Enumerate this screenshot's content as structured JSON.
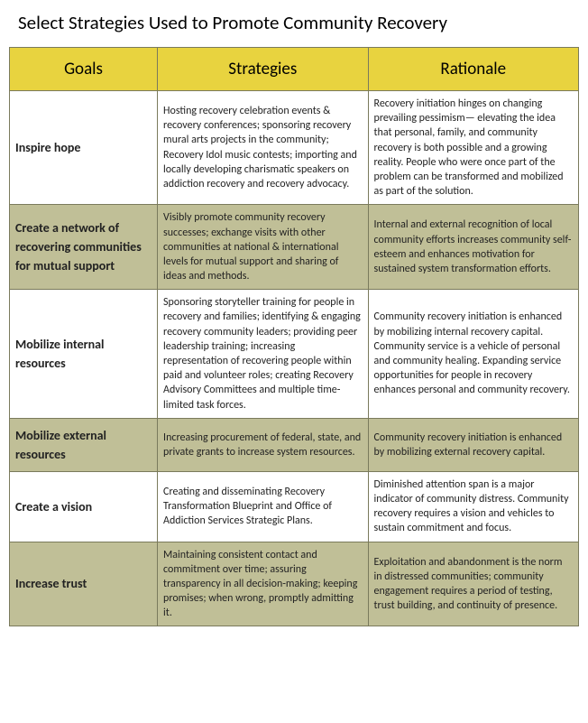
{
  "title": "Select Strategies Used to Promote Community Recovery",
  "headers": {
    "c1": "Goals",
    "c2": "Strategies",
    "c3": "Rationale"
  },
  "rows": [
    {
      "goal": "Inspire hope",
      "strategy": "Hosting recovery celebration events & recovery conferences; sponsoring recovery mural arts projects in the community; Recovery Idol music contests; importing and locally developing charismatic speakers on addiction recovery and recovery advocacy.",
      "rationale": "Recovery initiation hinges on changing prevailing pessimism— elevating the idea that personal, family, and community recovery is both possible and a growing reality. People who were once   part of the problem can be transformed and mobilized as part of the solution."
    },
    {
      "goal": "Create a network of recovering communities for mutual support",
      "strategy": "Visibly promote community recovery successes; exchange visits with other communities at national & international levels for mutual support and sharing of ideas and methods.",
      "rationale": "Internal and external recognition of local community efforts increases community self-esteem and enhances motivation for sustained system transformation efforts."
    },
    {
      "goal": "Mobilize internal resources",
      "strategy": "Sponsoring storyteller training for people in recovery and families; identifying & engaging recovery community leaders; providing peer leadership training; increasing representation of recovering people within paid and volunteer roles; creating Recovery Advisory Committees and multiple time-limited task forces.",
      "rationale": "Community recovery initiation is enhanced by mobilizing internal recovery capital. Community service is a vehicle of personal and community healing. Expanding service opportunities for people in recovery enhances personal and community recovery."
    },
    {
      "goal": "Mobilize external resources",
      "strategy": "Increasing procurement of federal, state, and private grants to increase system resources.",
      "rationale": "Community recovery initiation is enhanced by mobilizing external recovery capital."
    },
    {
      "goal": "Create a vision",
      "strategy": "Creating and disseminating Recovery Transformation Blueprint and Office of Addiction Services Strategic Plans.",
      "rationale": "Diminished attention span is a major indicator of community distress. Community recovery requires a vision and vehicles to sustain commitment and focus."
    },
    {
      "goal": "Increase trust",
      "strategy": " Maintaining consistent contact and commitment over time; assuring transparency in all decision-making; keeping promises; when wrong, promptly admitting it.",
      "rationale": "   Exploitation and abandonment is the norm in distressed communities; community engagement requires a period of testing, trust building, and continuity of presence."
    }
  ],
  "colors": {
    "header_bg": "#e8d33f",
    "row_alt_bg": "#c0bf97",
    "row_bg": "#ffffff",
    "border": "#7a7a5c"
  }
}
